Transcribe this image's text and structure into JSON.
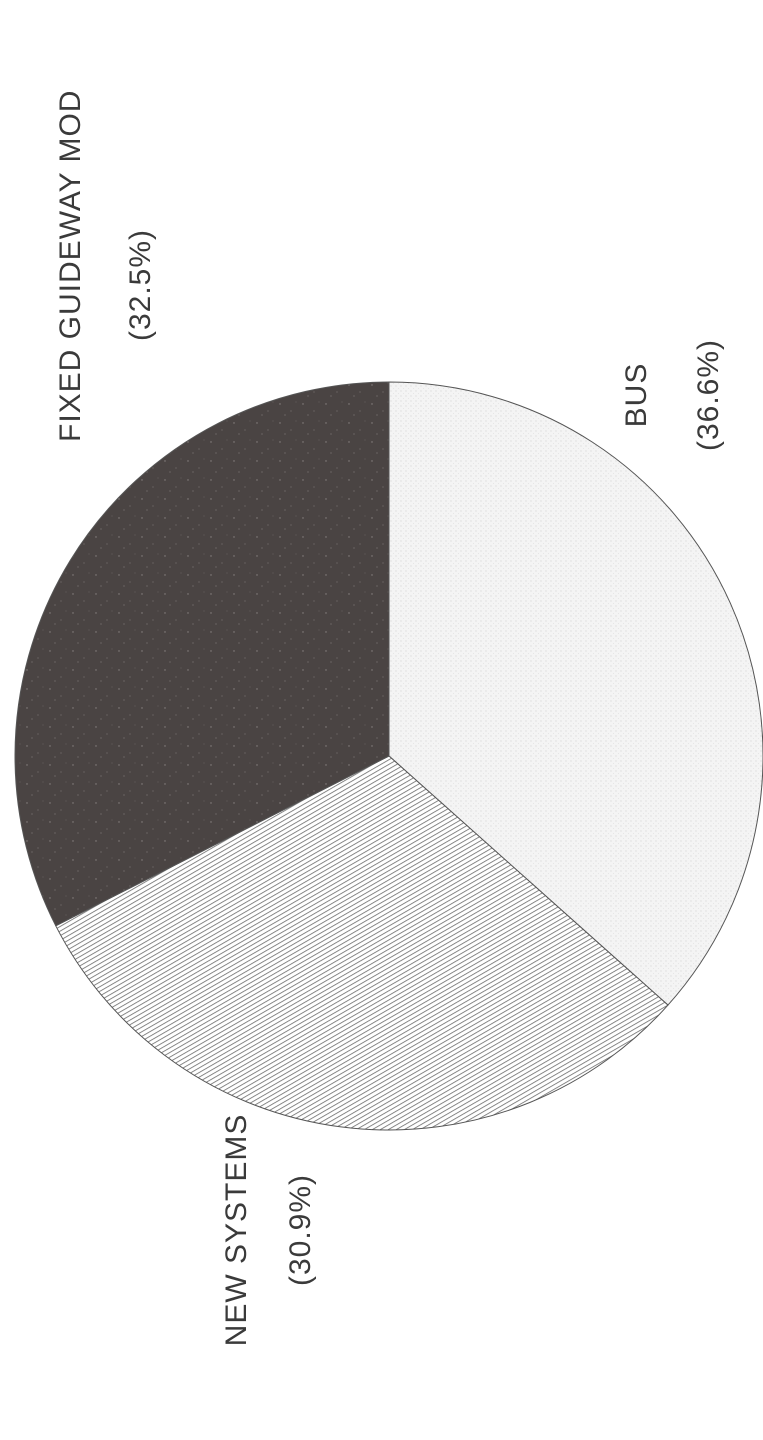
{
  "chart_data": {
    "type": "pie",
    "orientation": "rotated-90-ccw",
    "slices": [
      {
        "label": "BUS",
        "percent_label": "(36.6%)",
        "value": 36.6,
        "fill": "#f3f3f3",
        "pattern": "stipple"
      },
      {
        "label": "NEW SYSTEMS",
        "percent_label": "(30.9%)",
        "value": 30.9,
        "fill": "#a8a8a8",
        "pattern": "hatch"
      },
      {
        "label": "FIXED GUIDEWAY MOD",
        "percent_label": "(32.5%)",
        "value": 32.5,
        "fill": "#4a4443",
        "pattern": "speckle"
      }
    ],
    "title": "",
    "legend": "none",
    "grid": false
  }
}
